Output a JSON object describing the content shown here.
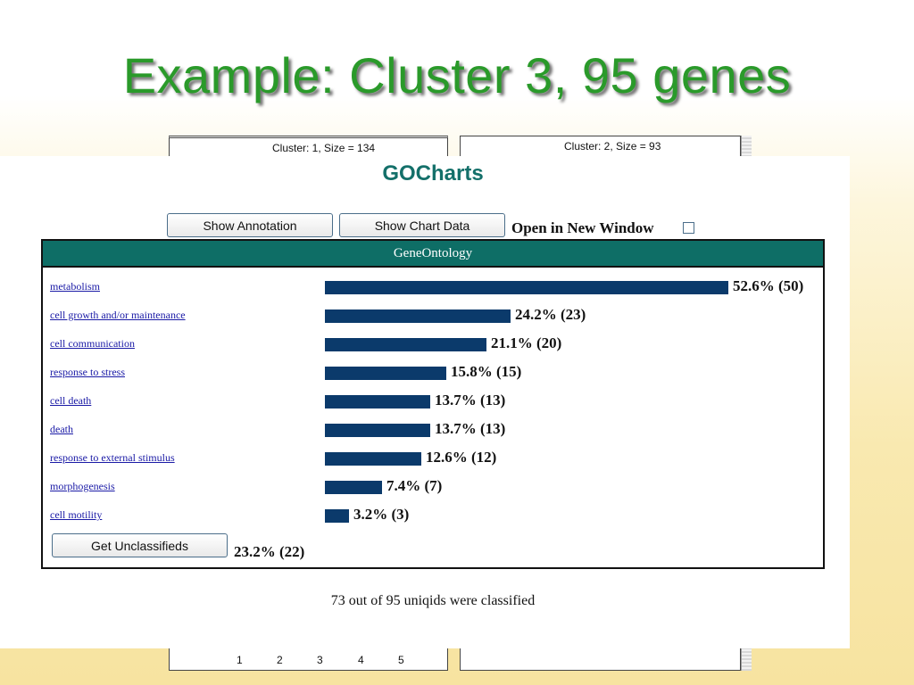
{
  "slide": {
    "title": "Example:  Cluster 3, 95 genes"
  },
  "background": {
    "cluster1_caption": "Cluster: 1, Size = 134",
    "cluster2_caption": "Cluster: 2, Size = 93",
    "axis_ticks": [
      "1",
      "2",
      "3",
      "4",
      "5"
    ]
  },
  "gocharts": {
    "title": "GOCharts",
    "show_annotation_label": "Show Annotation",
    "show_chart_data_label": "Show Chart Data",
    "open_new_window_label": "Open in New Window",
    "open_new_window_checked": false,
    "table_header": "GeneOntology",
    "get_unclassifieds_label": "Get Unclassifieds",
    "unclassified_value": "23.2% (22)",
    "summary": "73 out of 95 uniqids were classified",
    "bar_color": "#0b3a6b",
    "header_color": "#0e6e66"
  },
  "chart_data": {
    "type": "bar",
    "orientation": "horizontal",
    "categories": [
      "metabolism",
      "cell growth and/or maintenance",
      "cell communication",
      "response to stress",
      "cell death",
      "death",
      "response to external stimulus",
      "morphogenesis",
      "cell motility"
    ],
    "values": [
      52.6,
      24.2,
      21.1,
      15.8,
      13.7,
      13.7,
      12.6,
      7.4,
      3.2
    ],
    "counts": [
      50,
      23,
      20,
      15,
      13,
      13,
      12,
      7,
      3
    ],
    "data_labels": [
      "52.6% (50)",
      "24.2% (23)",
      "21.1% (20)",
      "15.8% (15)",
      "13.7% (13)",
      "13.7% (13)",
      "12.6% (12)",
      "7.4% (7)",
      "3.2% (3)"
    ],
    "title": "GeneOntology"
  }
}
